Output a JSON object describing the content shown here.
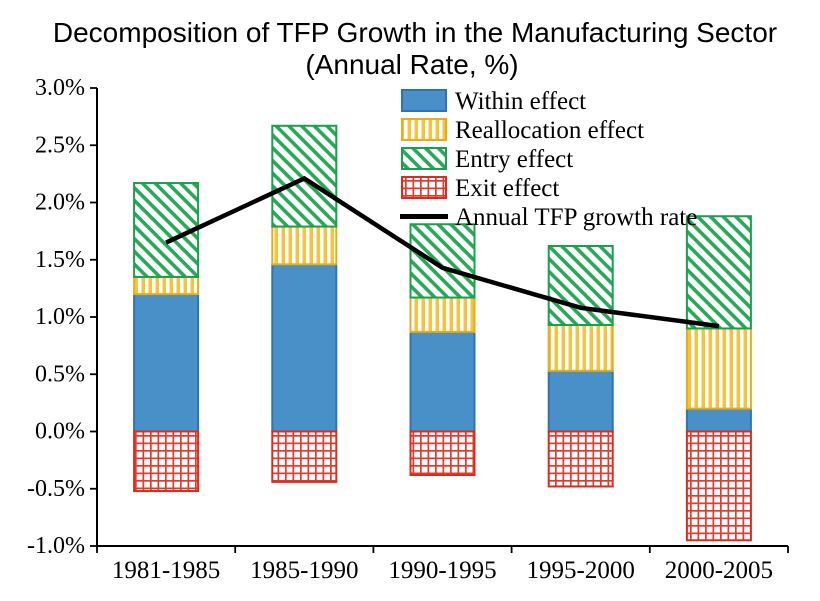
{
  "title": "Decomposition of TFP Growth in the Manufacturing Sector",
  "subtitle": "(Annual Rate, %)",
  "chart_data": {
    "type": "bar",
    "stacked": true,
    "grid": false,
    "legend_position": "top-center-inside",
    "title": "Decomposition of TFP Growth in the Manufacturing Sector",
    "subtitle": "(Annual Rate, %)",
    "xlabel": "",
    "ylabel": "",
    "categories": [
      "1981-1985",
      "1985-1990",
      "1990-1995",
      "1995-2000",
      "2000-2005"
    ],
    "series": [
      {
        "name": "Within effect",
        "fill": "solid",
        "color": "#4a90c8",
        "border": "#2e74b5",
        "values": [
          1.2,
          1.46,
          0.87,
          0.53,
          0.2
        ]
      },
      {
        "name": "Reallocation effect",
        "fill": "vstripe",
        "color": "#f5c33c",
        "border": "#e3ae1e",
        "values": [
          0.15,
          0.33,
          0.3,
          0.4,
          0.7
        ]
      },
      {
        "name": "Entry effect",
        "fill": "diag",
        "color": "#2aa85a",
        "border": "#18a04c",
        "values": [
          0.82,
          0.88,
          0.64,
          0.69,
          0.98
        ]
      },
      {
        "name": "Exit effect",
        "fill": "cross",
        "color": "#e23b2e",
        "border": "#de2a1c",
        "values": [
          -0.52,
          -0.44,
          -0.38,
          -0.48,
          -0.95
        ]
      }
    ],
    "line_series": {
      "name": "Annual TFP growth rate",
      "color": "#000000",
      "values": [
        1.65,
        2.21,
        1.43,
        1.08,
        0.92
      ]
    },
    "ylim": [
      -1.0,
      3.0
    ],
    "ytick_step": 0.5,
    "ytick_labels": [
      "-1.0%",
      "-0.5%",
      "0.0%",
      "0.5%",
      "1.0%",
      "1.5%",
      "2.0%",
      "2.5%",
      "3.0%"
    ]
  }
}
